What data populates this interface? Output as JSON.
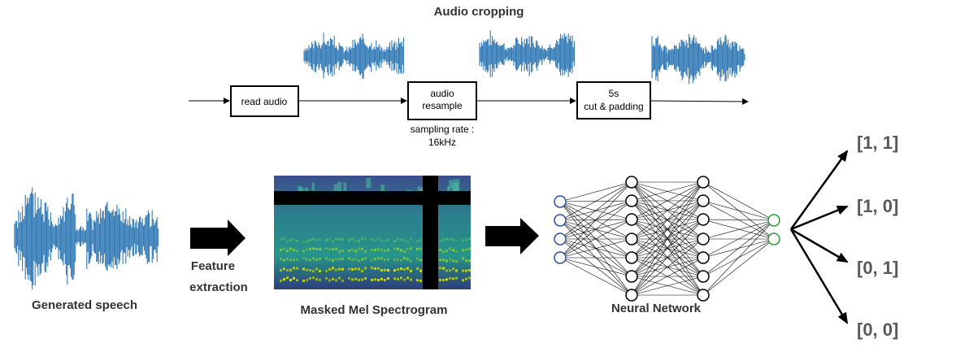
{
  "title": "Audio cropping",
  "pipeline": {
    "read_audio": "read audio",
    "resample_line1": "audio",
    "resample_line2": "resample",
    "sampling_line1": "sampling rate :",
    "sampling_line2": "16kHz",
    "cut_line1": "5s",
    "cut_line2": "cut & padding"
  },
  "labels": {
    "generated_speech": "Generated speech",
    "feature_line1": "Feature",
    "feature_line2": "extraction",
    "spectrogram": "Masked Mel Spectrogram",
    "network": "Neural Network"
  },
  "outputs": [
    "[1, 1]",
    "[1, 0]",
    "[0, 1]",
    "[0, 0]"
  ],
  "network": {
    "layers": [
      4,
      7,
      7,
      2
    ],
    "input_color": "#2b4fa8",
    "output_color": "#2e9a3c",
    "hidden_color": "#000000"
  },
  "colors": {
    "wave": "#2f78b5",
    "text": "#333333",
    "output_text": "#595959"
  }
}
